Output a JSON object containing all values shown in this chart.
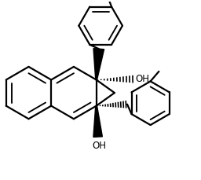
{
  "bg_color": "#ffffff",
  "line_color": "#000000",
  "line_width": 1.6,
  "fig_width": 2.56,
  "fig_height": 2.29,
  "dpi": 100,
  "oh_label": "OH",
  "font_size": 8.5
}
